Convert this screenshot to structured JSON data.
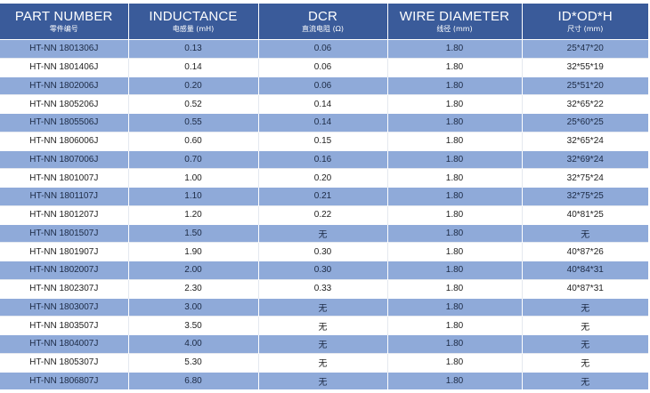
{
  "headers": [
    {
      "en": "PART NUMBER",
      "zh": "零件编号"
    },
    {
      "en": "INDUCTANCE",
      "zh": "电感量 (mH)"
    },
    {
      "en": "DCR",
      "zh": "直流电阻 (Ω)"
    },
    {
      "en": "WIRE DIAMETER",
      "zh": "线径 (mm)"
    },
    {
      "en": "ID*OD*H",
      "zh": "尺寸 (mm)"
    }
  ],
  "rows": [
    [
      "HT-NN 1801306J",
      "0.13",
      "0.06",
      "1.80",
      "25*47*20"
    ],
    [
      "HT-NN 1801406J",
      "0.14",
      "0.06",
      "1.80",
      "32*55*19"
    ],
    [
      "HT-NN 1802006J",
      "0.20",
      "0.06",
      "1.80",
      "25*51*20"
    ],
    [
      "HT-NN 1805206J",
      "0.52",
      "0.14",
      "1.80",
      "32*65*22"
    ],
    [
      "HT-NN 1805506J",
      "0.55",
      "0.14",
      "1.80",
      "25*60*25"
    ],
    [
      "HT-NN 1806006J",
      "0.60",
      "0.15",
      "1.80",
      "32*65*24"
    ],
    [
      "HT-NN 1807006J",
      "0.70",
      "0.16",
      "1.80",
      "32*69*24"
    ],
    [
      "HT-NN 1801007J",
      "1.00",
      "0.20",
      "1.80",
      "32*75*24"
    ],
    [
      "HT-NN 1801107J",
      "1.10",
      "0.21",
      "1.80",
      "32*75*25"
    ],
    [
      "HT-NN 1801207J",
      "1.20",
      "0.22",
      "1.80",
      "40*81*25"
    ],
    [
      "HT-NN 1801507J",
      "1.50",
      "无",
      "1.80",
      "无"
    ],
    [
      "HT-NN 1801907J",
      "1.90",
      "0.30",
      "1.80",
      "40*87*26"
    ],
    [
      "HT-NN 1802007J",
      "2.00",
      "0.30",
      "1.80",
      "40*84*31"
    ],
    [
      "HT-NN 1802307J",
      "2.30",
      "0.33",
      "1.80",
      "40*87*31"
    ],
    [
      "HT-NN 1803007J",
      "3.00",
      "无",
      "1.80",
      "无"
    ],
    [
      "HT-NN 1803507J",
      "3.50",
      "无",
      "1.80",
      "无"
    ],
    [
      "HT-NN 1804007J",
      "4.00",
      "无",
      "1.80",
      "无"
    ],
    [
      "HT-NN 1805307J",
      "5.30",
      "无",
      "1.80",
      "无"
    ],
    [
      "HT-NN 1806807J",
      "6.80",
      "无",
      "1.80",
      "无"
    ]
  ]
}
